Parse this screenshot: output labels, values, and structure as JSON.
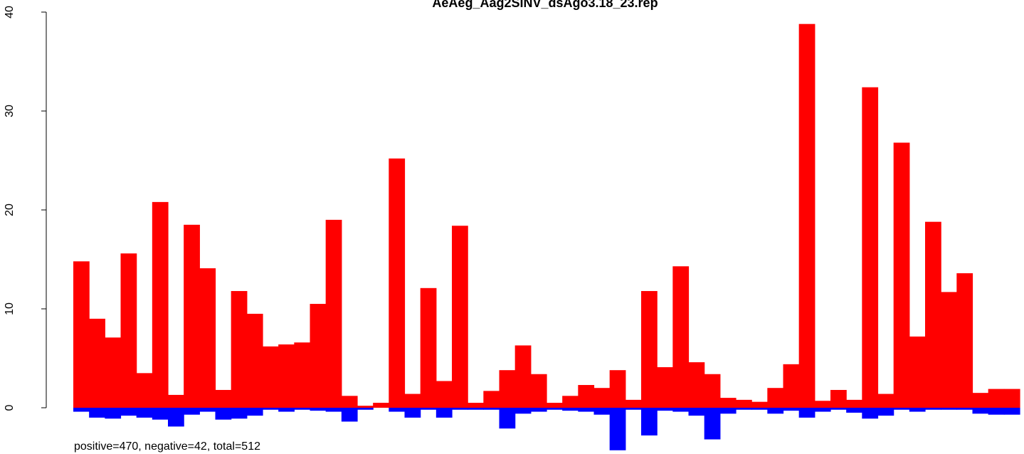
{
  "chart_data": {
    "type": "bar",
    "title": "AeAeg_Aag2SINV_dsAgo3.18_23.rep",
    "xlabel": "",
    "ylabel": "",
    "ylim": [
      -4.5,
      40
    ],
    "yticks": [
      0,
      10,
      20,
      30,
      40
    ],
    "grid": false,
    "legend": "none",
    "colors": {
      "positive": "#ff0000",
      "negative": "#0000ff"
    },
    "series": [
      {
        "name": "positive",
        "values": [
          14.8,
          9.0,
          7.1,
          15.6,
          3.5,
          20.8,
          1.3,
          18.5,
          14.1,
          1.8,
          11.8,
          9.5,
          6.2,
          6.4,
          6.6,
          10.5,
          19.0,
          1.2,
          0.2,
          0.5,
          25.2,
          1.4,
          12.1,
          2.7,
          18.4,
          0.5,
          1.7,
          3.8,
          6.3,
          3.4,
          0.5,
          1.2,
          2.3,
          2.0,
          3.8,
          0.8,
          11.8,
          4.1,
          14.3,
          4.6,
          3.4,
          1.0,
          0.8,
          0.6,
          2.0,
          4.4,
          38.8,
          0.7,
          1.8,
          0.8,
          32.4,
          1.4,
          26.8,
          7.2,
          18.8,
          11.7,
          13.6,
          1.5,
          1.9,
          1.9
        ]
      },
      {
        "name": "negative",
        "values": [
          -0.4,
          -1.0,
          -1.1,
          -0.8,
          -1.0,
          -1.2,
          -1.9,
          -0.7,
          -0.4,
          -1.2,
          -1.1,
          -0.8,
          -0.2,
          -0.4,
          -0.2,
          -0.3,
          -0.4,
          -1.4,
          -0.2,
          0.0,
          -0.4,
          -1.0,
          -0.2,
          -1.0,
          -0.2,
          -0.2,
          -0.2,
          -2.1,
          -0.6,
          -0.4,
          -0.2,
          -0.3,
          -0.4,
          -0.7,
          -4.3,
          -0.2,
          -2.8,
          -0.3,
          -0.4,
          -0.8,
          -3.2,
          -0.6,
          -0.2,
          -0.2,
          -0.6,
          -0.3,
          -1.0,
          -0.4,
          -0.2,
          -0.5,
          -1.1,
          -0.8,
          -0.2,
          -0.4,
          -0.2,
          -0.2,
          -0.2,
          -0.6,
          -0.7,
          -0.7
        ]
      }
    ]
  },
  "summary_text": "positive=470, negative=42, total=512"
}
